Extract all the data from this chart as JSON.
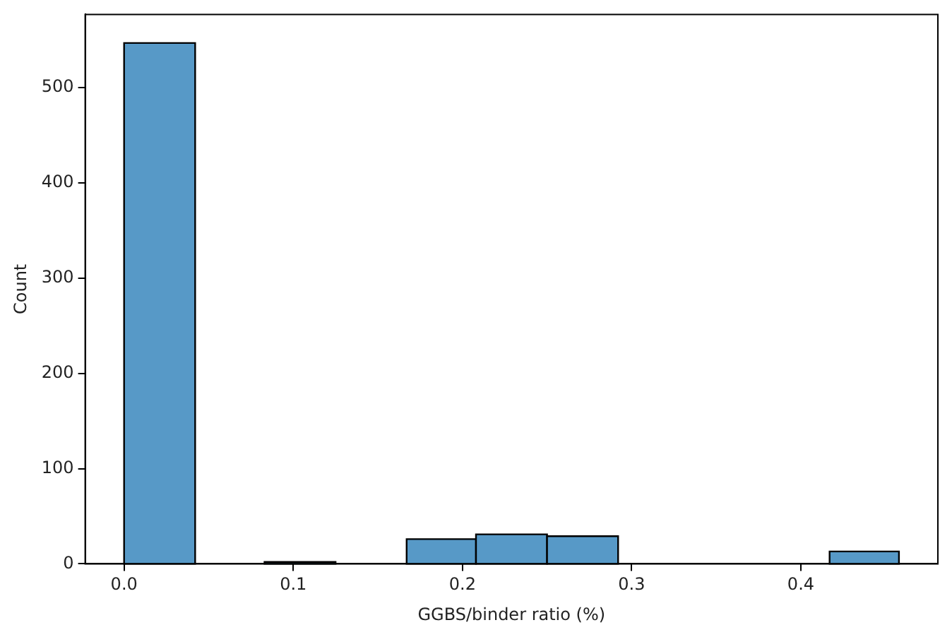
{
  "chart_data": {
    "type": "histogram",
    "xlabel": "GGBS/binder ratio (%)",
    "ylabel": "Count",
    "bins": [
      0,
      0.042,
      0.083,
      0.125,
      0.167,
      0.208,
      0.25,
      0.292,
      0.417,
      0.458
    ],
    "values": [
      547,
      0,
      2,
      0,
      26,
      31,
      29,
      0,
      13
    ],
    "color": "#5799c7",
    "xlim": [
      -0.023,
      0.481
    ],
    "xticks": [
      {
        "value": 0,
        "label": "0.0"
      },
      0.1,
      0.2,
      0.3,
      0.4
    ],
    "ylim": [
      0,
      577
    ],
    "yticks": [
      0,
      100,
      200,
      300,
      400,
      500
    ],
    "grid": false,
    "legend": false
  }
}
